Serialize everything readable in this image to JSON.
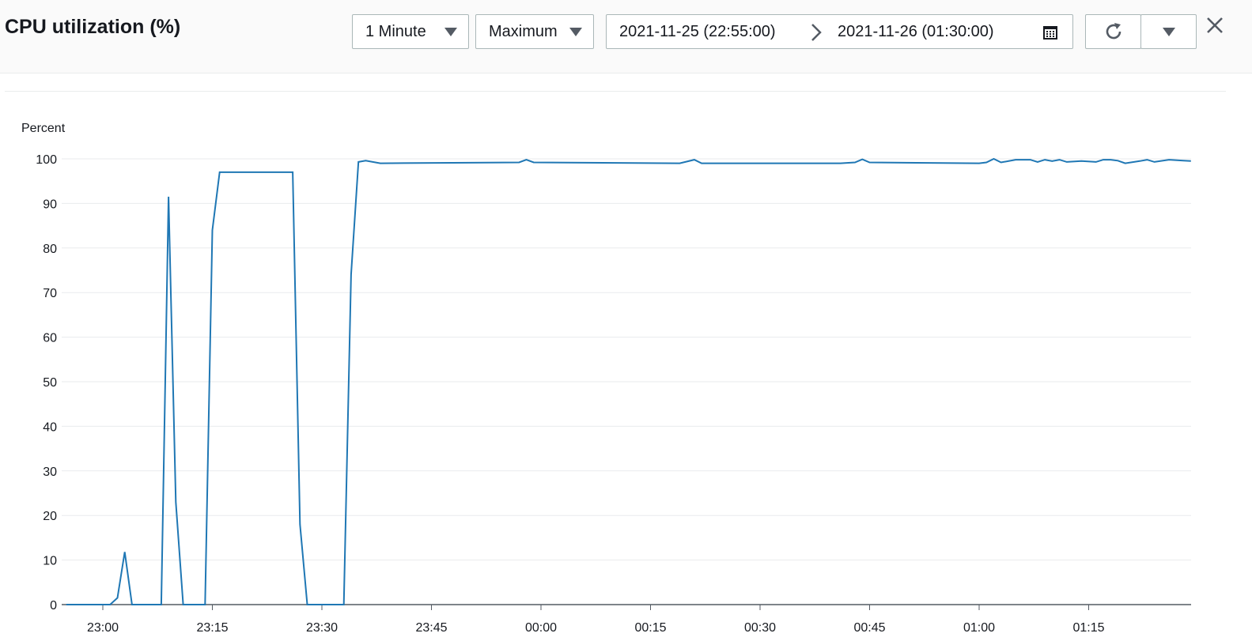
{
  "header": {
    "title": "CPU utilization (%)",
    "period": {
      "value": "1 Minute"
    },
    "statistic": {
      "value": "Maximum"
    },
    "range": {
      "from": "2021-11-25 (22:55:00)",
      "to": "2021-11-26 (01:30:00)"
    },
    "icons": {
      "period_caret": "caret-down-icon",
      "statistic_caret": "caret-down-icon",
      "range_arrow": "chevron-right-icon",
      "calendar": "calendar-icon",
      "refresh": "refresh-icon",
      "more": "caret-down-icon",
      "close": "close-icon"
    }
  },
  "chart_data": {
    "type": "line",
    "title": "",
    "ylabel": "Percent",
    "xlabel": "",
    "ylim": [
      0,
      100
    ],
    "yticks": [
      0,
      10,
      20,
      30,
      40,
      50,
      60,
      70,
      80,
      90,
      100
    ],
    "xticks": [
      "23:00",
      "23:15",
      "23:30",
      "23:45",
      "00:00",
      "00:15",
      "00:30",
      "00:45",
      "01:00",
      "01:15"
    ],
    "xlim": [
      "22:55",
      "01:27"
    ],
    "grid": true,
    "color": "#1f77b4",
    "series": [
      {
        "points": [
          [
            "22:55",
            0
          ],
          [
            "23:01",
            0
          ],
          [
            "23:02",
            1.5
          ],
          [
            "23:03",
            11.8
          ],
          [
            "23:04",
            0
          ],
          [
            "23:08",
            0
          ],
          [
            "23:09",
            91.5
          ],
          [
            "23:10",
            23
          ],
          [
            "23:11",
            0
          ],
          [
            "23:14",
            0
          ],
          [
            "23:15",
            84
          ],
          [
            "23:16",
            97
          ],
          [
            "23:26",
            97
          ],
          [
            "23:27",
            18
          ],
          [
            "23:28",
            0
          ],
          [
            "23:33",
            0
          ],
          [
            "23:34",
            74
          ],
          [
            "23:35",
            99.3
          ],
          [
            "23:36",
            99.6
          ],
          [
            "23:38",
            99
          ],
          [
            "23:57",
            99.2
          ],
          [
            "23:58",
            99.8
          ],
          [
            "23:59",
            99.2
          ],
          [
            "00:19",
            99
          ],
          [
            "00:21",
            99.8
          ],
          [
            "00:22",
            99
          ],
          [
            "00:41",
            99
          ],
          [
            "00:43",
            99.2
          ],
          [
            "00:44",
            99.9
          ],
          [
            "00:45",
            99.2
          ],
          [
            "01:00",
            99
          ],
          [
            "01:01",
            99.2
          ],
          [
            "01:02",
            100
          ],
          [
            "01:03",
            99.2
          ],
          [
            "01:05",
            99.8
          ],
          [
            "01:07",
            99.8
          ],
          [
            "01:08",
            99.3
          ],
          [
            "01:09",
            99.8
          ],
          [
            "01:10",
            99.5
          ],
          [
            "01:11",
            99.8
          ],
          [
            "01:12",
            99.3
          ],
          [
            "01:14",
            99.5
          ],
          [
            "01:16",
            99.3
          ],
          [
            "01:17",
            99.8
          ],
          [
            "01:18",
            99.8
          ],
          [
            "01:19",
            99.6
          ],
          [
            "01:20",
            99
          ],
          [
            "01:22",
            99.5
          ],
          [
            "01:23",
            99.8
          ],
          [
            "01:24",
            99.3
          ],
          [
            "01:26",
            99.8
          ],
          [
            "01:28",
            99.6
          ],
          [
            "01:29",
            99.5
          ]
        ]
      }
    ]
  }
}
